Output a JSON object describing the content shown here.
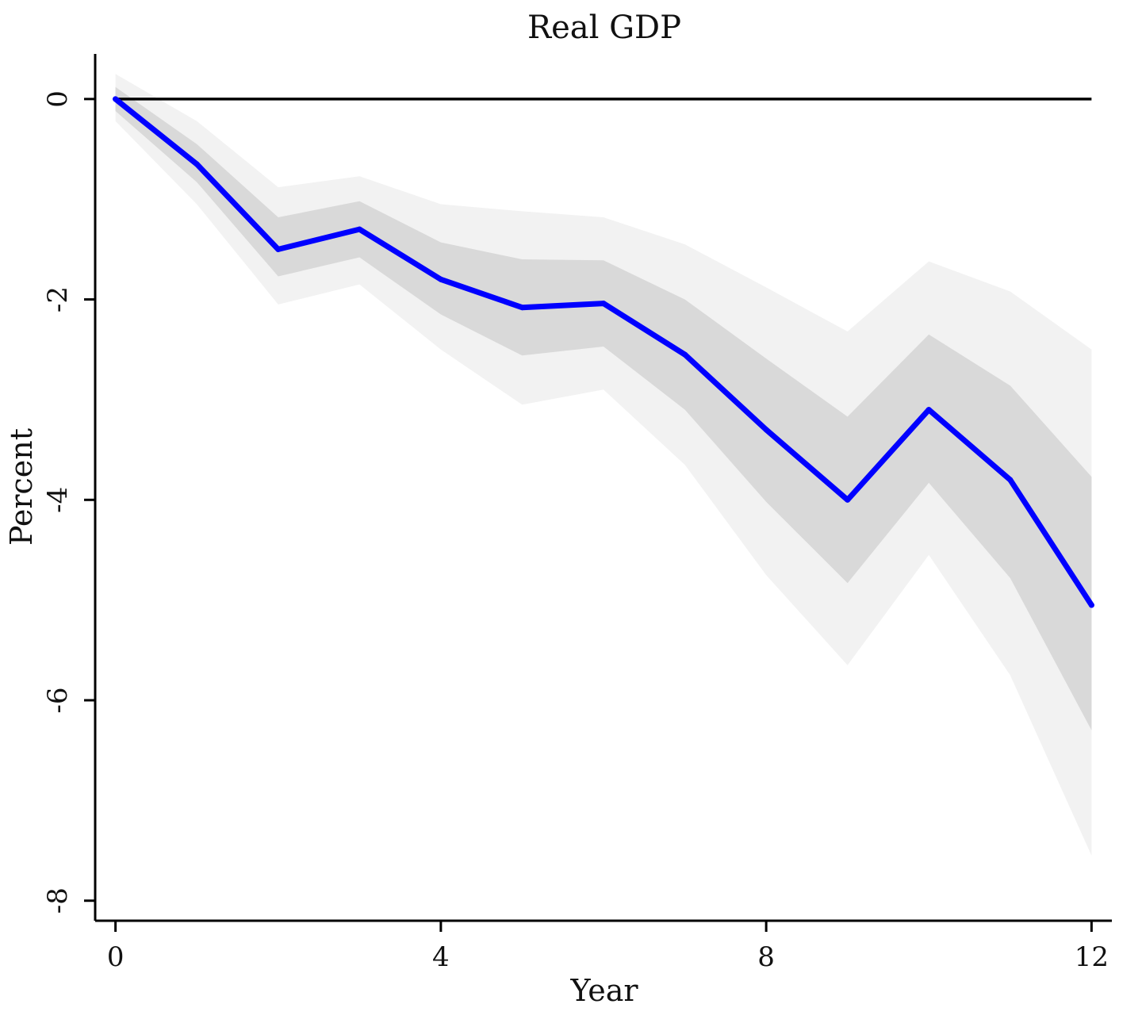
{
  "chart_data": {
    "type": "line",
    "title": "Real GDP",
    "xlabel": "Year",
    "ylabel": "Percent",
    "x": [
      0,
      1,
      2,
      3,
      4,
      5,
      6,
      7,
      8,
      9,
      10,
      11,
      12
    ],
    "xlim": [
      -0.25,
      12.25
    ],
    "ylim": [
      -8.2,
      0.45
    ],
    "xticks": [
      0,
      4,
      8,
      12
    ],
    "yticks": [
      0,
      -2,
      -4,
      -6,
      -8
    ],
    "grid": false,
    "reference_line": 0,
    "series": [
      {
        "values": [
          0.0,
          -0.65,
          -1.5,
          -1.3,
          -1.8,
          -2.08,
          -2.04,
          -2.55,
          -3.3,
          -4.0,
          -3.1,
          -3.8,
          -5.05
        ],
        "color": "#0000ff"
      }
    ],
    "bands": [
      {
        "level": "outer",
        "color": "#f2f2f2",
        "lower": [
          -0.22,
          -1.05,
          -2.05,
          -1.85,
          -2.5,
          -3.05,
          -2.9,
          -3.65,
          -4.75,
          -5.65,
          -4.55,
          -5.75,
          -7.55
        ],
        "upper": [
          0.25,
          -0.22,
          -0.88,
          -0.77,
          -1.05,
          -1.12,
          -1.18,
          -1.45,
          -1.88,
          -2.32,
          -1.62,
          -1.92,
          -2.5
        ]
      },
      {
        "level": "inner",
        "color": "#d9d9d9",
        "lower": [
          -0.12,
          -0.83,
          -1.77,
          -1.58,
          -2.15,
          -2.56,
          -2.47,
          -3.1,
          -4.02,
          -4.83,
          -3.83,
          -4.78,
          -6.3
        ],
        "upper": [
          0.12,
          -0.45,
          -1.18,
          -1.02,
          -1.43,
          -1.6,
          -1.61,
          -2.0,
          -2.59,
          -3.17,
          -2.35,
          -2.86,
          -3.77
        ]
      }
    ]
  }
}
